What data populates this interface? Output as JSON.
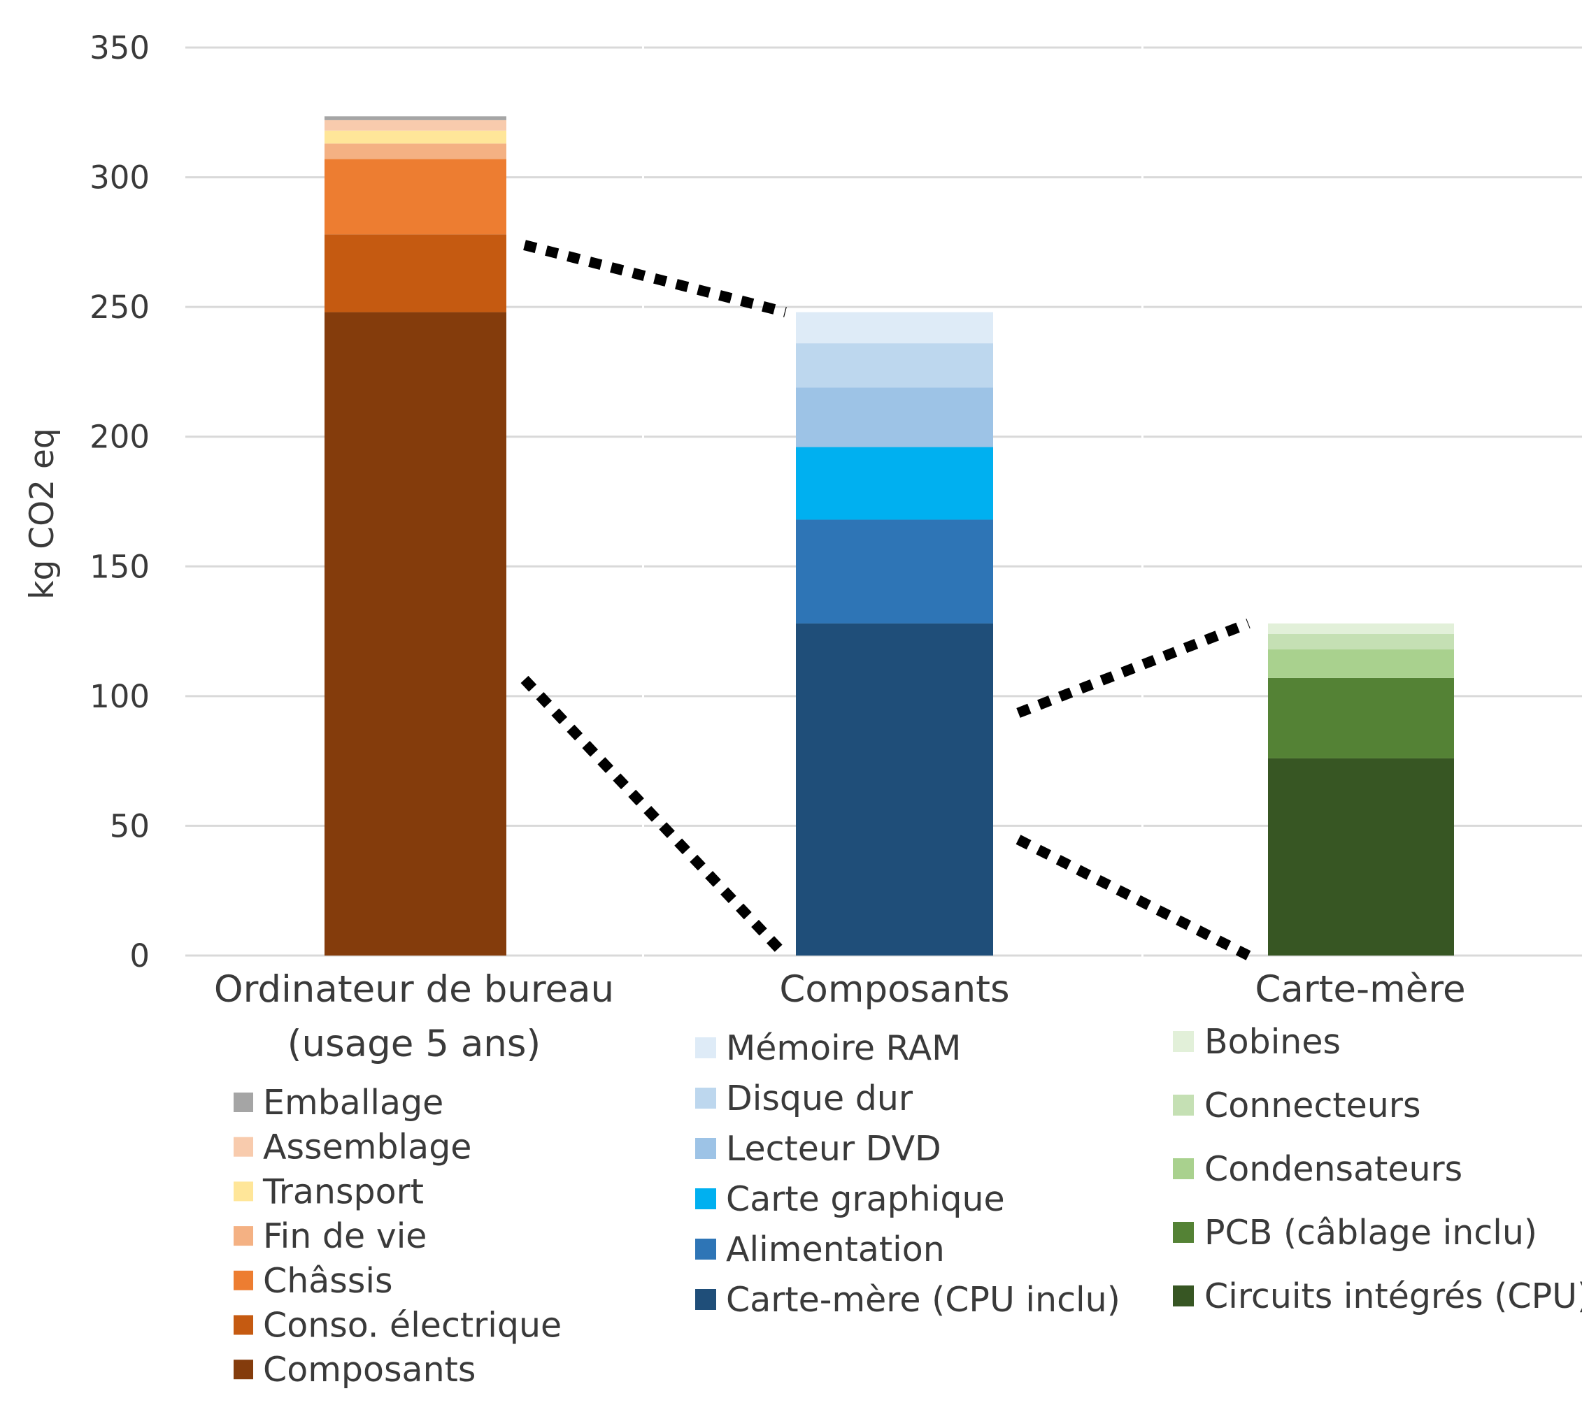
{
  "chart_data": {
    "type": "bar",
    "stacked": true,
    "ylabel": "kg CO2 eq",
    "ylim": [
      0,
      350
    ],
    "yticks": [
      0,
      50,
      100,
      150,
      200,
      250,
      300,
      350
    ],
    "grid": true,
    "legend_position": "below each bar",
    "categories": [
      "Ordinateur de bureau\n(usage 5 ans)",
      "Composants",
      "Carte-mère"
    ],
    "stacks": [
      {
        "category": "Ordinateur de bureau\n(usage 5 ans)",
        "segments": [
          {
            "name": "Composants",
            "value": 248,
            "color": "#843C0C"
          },
          {
            "name": "Conso. électrique",
            "value": 30,
            "color": "#C55A11"
          },
          {
            "name": "Châssis",
            "value": 29,
            "color": "#ED7D31"
          },
          {
            "name": "Fin de vie",
            "value": 6,
            "color": "#F4B183"
          },
          {
            "name": "Transport",
            "value": 5,
            "color": "#FFE699"
          },
          {
            "name": "Assemblage",
            "value": 4,
            "color": "#F8CBAD"
          },
          {
            "name": "Emballage",
            "value": 1.5,
            "color": "#A5A5A5"
          }
        ]
      },
      {
        "category": "Composants",
        "segments": [
          {
            "name": "Carte-mère (CPU inclu)",
            "value": 128,
            "color": "#1F4E79"
          },
          {
            "name": "Alimentation",
            "value": 40,
            "color": "#2E75B6"
          },
          {
            "name": "Carte graphique",
            "value": 28,
            "color": "#00B0F0"
          },
          {
            "name": "Lecteur DVD",
            "value": 23,
            "color": "#9DC3E6"
          },
          {
            "name": "Disque dur",
            "value": 17,
            "color": "#BDD7EE"
          },
          {
            "name": "Mémoire RAM",
            "value": 12,
            "color": "#DEEBF7"
          }
        ]
      },
      {
        "category": "Carte-mère",
        "segments": [
          {
            "name": "Circuits intégrés (CPU)",
            "value": 76,
            "color": "#375623"
          },
          {
            "name": "PCB (câblage inclu)",
            "value": 31,
            "color": "#548235"
          },
          {
            "name": "Condensateurs",
            "value": 11,
            "color": "#A9D18E"
          },
          {
            "name": "Connecteurs",
            "value": 6,
            "color": "#C5E0B4"
          },
          {
            "name": "Bobines",
            "value": 4,
            "color": "#E2F0D9"
          }
        ]
      }
    ],
    "legends": [
      [
        "Emballage",
        "Assemblage",
        "Transport",
        "Fin de vie",
        "Châssis",
        "Conso. électrique",
        "Composants"
      ],
      [
        "Mémoire RAM",
        "Disque dur",
        "Lecteur DVD",
        "Carte graphique",
        "Alimentation",
        "Carte-mère (CPU inclu)"
      ],
      [
        "Bobines",
        "Connecteurs",
        "Condensateurs",
        "PCB (câblage inclu)",
        "Circuits intégrés (CPU)"
      ]
    ],
    "connectors": [
      {
        "from_category": "Ordinateur de bureau\n(usage 5 ans)",
        "to_category": "Composants",
        "from_low": 0,
        "from_high": 248
      },
      {
        "from_category": "Composants",
        "to_category": "Carte-mère",
        "from_low": 0,
        "from_high": 128
      }
    ]
  }
}
